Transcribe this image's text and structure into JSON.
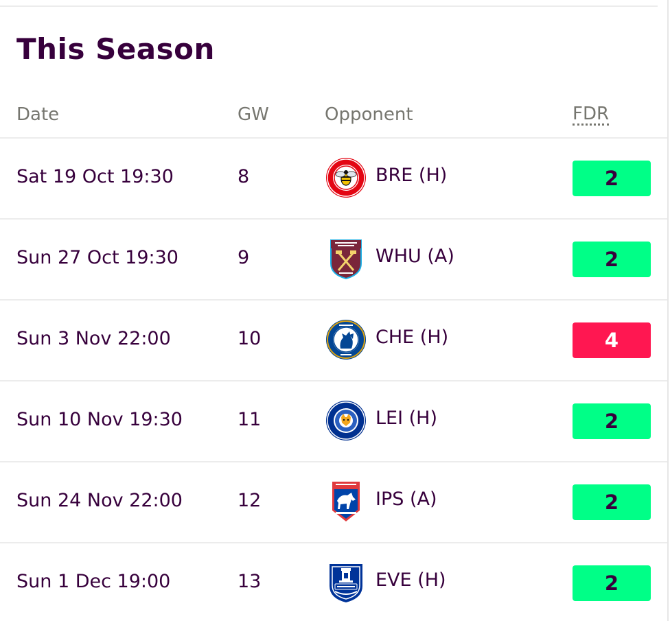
{
  "section": {
    "title": "This Season"
  },
  "columns": {
    "date": "Date",
    "gw": "GW",
    "opponent": "Opponent",
    "fdr": "FDR"
  },
  "fixtures": [
    {
      "date": "Sat 19 Oct 19:30",
      "gw": "8",
      "opponent": "BRE (H)",
      "fdr": "2",
      "fdr_bg": "#00ff87",
      "fdr_fg": "#37003c",
      "badge_icon": "brentford-badge-icon"
    },
    {
      "date": "Sun 27 Oct 19:30",
      "gw": "9",
      "opponent": "WHU (A)",
      "fdr": "2",
      "fdr_bg": "#00ff87",
      "fdr_fg": "#37003c",
      "badge_icon": "west-ham-badge-icon"
    },
    {
      "date": "Sun 3 Nov 22:00",
      "gw": "10",
      "opponent": "CHE (H)",
      "fdr": "4",
      "fdr_bg": "#ff1751",
      "fdr_fg": "#ffffff",
      "badge_icon": "chelsea-badge-icon"
    },
    {
      "date": "Sun 10 Nov 19:30",
      "gw": "11",
      "opponent": "LEI (H)",
      "fdr": "2",
      "fdr_bg": "#00ff87",
      "fdr_fg": "#37003c",
      "badge_icon": "leicester-badge-icon"
    },
    {
      "date": "Sun 24 Nov 22:00",
      "gw": "12",
      "opponent": "IPS (A)",
      "fdr": "2",
      "fdr_bg": "#00ff87",
      "fdr_fg": "#37003c",
      "badge_icon": "ipswich-badge-icon"
    },
    {
      "date": "Sun 1 Dec 19:00",
      "gw": "13",
      "opponent": "EVE (H)",
      "fdr": "2",
      "fdr_bg": "#00ff87",
      "fdr_fg": "#37003c",
      "badge_icon": "everton-badge-icon"
    }
  ]
}
